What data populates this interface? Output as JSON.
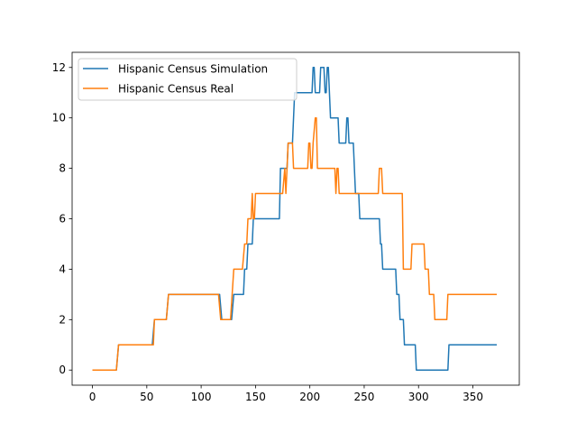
{
  "chart_data": {
    "type": "line",
    "title": "",
    "xlabel": "",
    "ylabel": "",
    "xlim": [
      -18.7,
      392.7
    ],
    "ylim": [
      -0.6,
      12.6
    ],
    "xticks": [
      0,
      50,
      100,
      150,
      200,
      250,
      300,
      350
    ],
    "yticks": [
      0,
      2,
      4,
      6,
      8,
      10,
      12
    ],
    "grid": false,
    "legend": "top-left",
    "series": [
      {
        "name": "Hispanic Census Simulation",
        "color": "#1f77b4",
        "points": [
          [
            0,
            0
          ],
          [
            22,
            0
          ],
          [
            24,
            1
          ],
          [
            55,
            1
          ],
          [
            57,
            2
          ],
          [
            68,
            2
          ],
          [
            70,
            3
          ],
          [
            117,
            3
          ],
          [
            119,
            2
          ],
          [
            128,
            2
          ],
          [
            130,
            3
          ],
          [
            139,
            3
          ],
          [
            140,
            4
          ],
          [
            142,
            4
          ],
          [
            143,
            5
          ],
          [
            147,
            5
          ],
          [
            148,
            6
          ],
          [
            172,
            6
          ],
          [
            173,
            8
          ],
          [
            179,
            8
          ],
          [
            180,
            9
          ],
          [
            184,
            9
          ],
          [
            185,
            10
          ],
          [
            186,
            11
          ],
          [
            202,
            11
          ],
          [
            203,
            12
          ],
          [
            204,
            12
          ],
          [
            205,
            11
          ],
          [
            209,
            11
          ],
          [
            210,
            12
          ],
          [
            213,
            12
          ],
          [
            214,
            11
          ],
          [
            215,
            11
          ],
          [
            216,
            12
          ],
          [
            217,
            12
          ],
          [
            218,
            11
          ],
          [
            219,
            10
          ],
          [
            226,
            10
          ],
          [
            227,
            9
          ],
          [
            233,
            9
          ],
          [
            234,
            10
          ],
          [
            235,
            10
          ],
          [
            236,
            9
          ],
          [
            240,
            9
          ],
          [
            241,
            8
          ],
          [
            242,
            7
          ],
          [
            245,
            7
          ],
          [
            246,
            6
          ],
          [
            264,
            6
          ],
          [
            265,
            5
          ],
          [
            266,
            5
          ],
          [
            267,
            4
          ],
          [
            279,
            4
          ],
          [
            280,
            3
          ],
          [
            282,
            3
          ],
          [
            283,
            2
          ],
          [
            286,
            2
          ],
          [
            287,
            1
          ],
          [
            297,
            1
          ],
          [
            298,
            0
          ],
          [
            327,
            0
          ],
          [
            328,
            1
          ],
          [
            372,
            1
          ]
        ]
      },
      {
        "name": "Hispanic Census Real",
        "color": "#ff7f0e",
        "points": [
          [
            0,
            0
          ],
          [
            22,
            0
          ],
          [
            24,
            1
          ],
          [
            56,
            1
          ],
          [
            57,
            2
          ],
          [
            68,
            2
          ],
          [
            70,
            3
          ],
          [
            116,
            3
          ],
          [
            118,
            2
          ],
          [
            127,
            2
          ],
          [
            130,
            4
          ],
          [
            138,
            4
          ],
          [
            140,
            5
          ],
          [
            142,
            5
          ],
          [
            143,
            6
          ],
          [
            146,
            6
          ],
          [
            147,
            7
          ],
          [
            148,
            6
          ],
          [
            149,
            6
          ],
          [
            150,
            7
          ],
          [
            170,
            7
          ],
          [
            171,
            7
          ],
          [
            175,
            7
          ],
          [
            177,
            8
          ],
          [
            178,
            7
          ],
          [
            180,
            9
          ],
          [
            184,
            9
          ],
          [
            185,
            8
          ],
          [
            198,
            8
          ],
          [
            199,
            9
          ],
          [
            200,
            9
          ],
          [
            201,
            8
          ],
          [
            202,
            8
          ],
          [
            203,
            9
          ],
          [
            205,
            10
          ],
          [
            206,
            10
          ],
          [
            207,
            8
          ],
          [
            223,
            8
          ],
          [
            224,
            7
          ],
          [
            225,
            8
          ],
          [
            226,
            8
          ],
          [
            227,
            7
          ],
          [
            263,
            7
          ],
          [
            264,
            8
          ],
          [
            265,
            8
          ],
          [
            266,
            8
          ],
          [
            267,
            7
          ],
          [
            285,
            7
          ],
          [
            286,
            4
          ],
          [
            293,
            4
          ],
          [
            294,
            5
          ],
          [
            305,
            5
          ],
          [
            306,
            4
          ],
          [
            309,
            4
          ],
          [
            310,
            3
          ],
          [
            314,
            3
          ],
          [
            315,
            2
          ],
          [
            326,
            2
          ],
          [
            327,
            3
          ],
          [
            372,
            3
          ]
        ]
      }
    ]
  }
}
